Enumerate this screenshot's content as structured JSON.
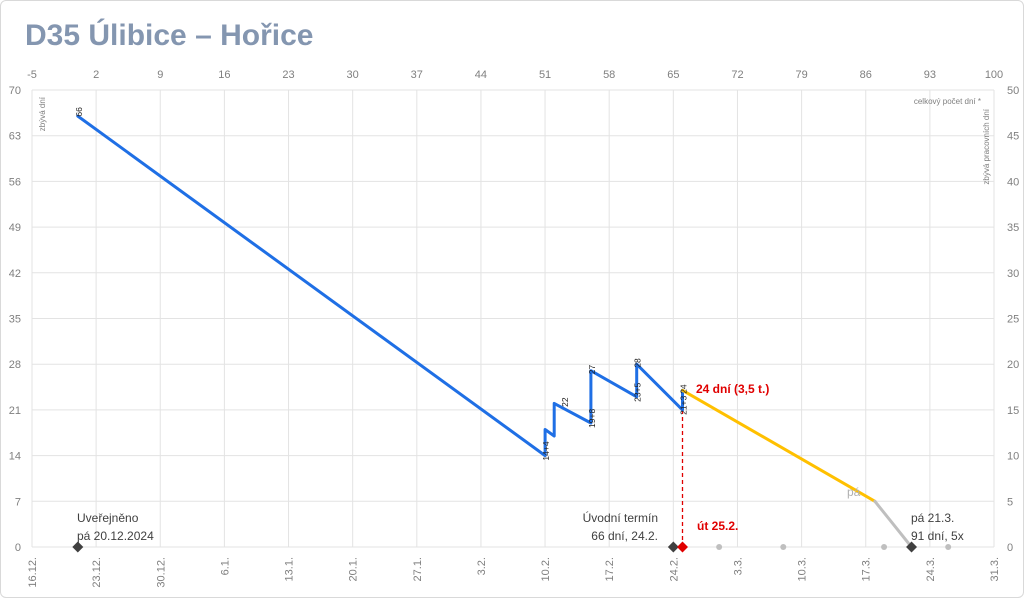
{
  "title": "D35 Úlibice – Hořice",
  "chart_data": {
    "type": "line",
    "title": "D35 Úlibice – Hořice",
    "x_top": {
      "min": -5,
      "max": 100,
      "ticks": [
        "-5",
        "2",
        "9",
        "16",
        "23",
        "30",
        "37",
        "44",
        "51",
        "58",
        "65",
        "72",
        "79",
        "86",
        "93",
        "100"
      ]
    },
    "x_bottom": {
      "ticks": [
        "16.12.",
        "23.12.",
        "30.12.",
        "6.1.",
        "13.1.",
        "20.1.",
        "27.1.",
        "3.2.",
        "10.2.",
        "17.2.",
        "24.2.",
        "3.3.",
        "10.3.",
        "17.3.",
        "24.3.",
        "31.3."
      ]
    },
    "y_left": {
      "min": 0,
      "max": 70,
      "label": "zbývá dní",
      "ticks": [
        "0",
        "7",
        "14",
        "21",
        "28",
        "35",
        "42",
        "49",
        "56",
        "63",
        "70"
      ]
    },
    "y_right": {
      "min": 0,
      "max": 50,
      "label": "zbývá pracovních dní",
      "label_top": "celkový počet dní *",
      "ticks": [
        "0",
        "5",
        "10",
        "15",
        "20",
        "25",
        "30",
        "35",
        "40",
        "45",
        "50"
      ]
    },
    "grid": true,
    "series": [
      {
        "color": "#1f6fe5",
        "points": [
          [
            0,
            66
          ],
          [
            51,
            14
          ],
          [
            51,
            18
          ],
          [
            52,
            17
          ],
          [
            52,
            22
          ],
          [
            56,
            19
          ],
          [
            56,
            27
          ],
          [
            61,
            23
          ],
          [
            61,
            28
          ],
          [
            66,
            21
          ],
          [
            66,
            24
          ]
        ]
      },
      {
        "color": "#ffc000",
        "points": [
          [
            66,
            24
          ],
          [
            87,
            7
          ]
        ]
      },
      {
        "color": "#bfbfbf",
        "points": [
          [
            87,
            7
          ],
          [
            91,
            0
          ]
        ]
      }
    ],
    "point_labels": [
      {
        "x": 0,
        "y": 66,
        "text": "66"
      },
      {
        "x": 51,
        "y": 14,
        "text": "14+4"
      },
      {
        "x": 52,
        "y": 22,
        "text": "22"
      },
      {
        "x": 56,
        "y": 19,
        "text": "19+8"
      },
      {
        "x": 56,
        "y": 27,
        "text": "27"
      },
      {
        "x": 61,
        "y": 23,
        "text": "23+5"
      },
      {
        "x": 61,
        "y": 28,
        "text": "28"
      },
      {
        "x": 66,
        "y": 21,
        "text": "21+3"
      },
      {
        "x": 66,
        "y": 24,
        "text": "24"
      }
    ],
    "markers": [
      {
        "x": 0,
        "y": 0,
        "color": "#404040",
        "shape": "diamond"
      },
      {
        "x": 65,
        "y": 0,
        "color": "#404040",
        "shape": "diamond"
      },
      {
        "x": 66,
        "y": 0,
        "color": "#e00000",
        "shape": "diamond"
      },
      {
        "x": 91,
        "y": 0,
        "color": "#404040",
        "shape": "diamond"
      },
      {
        "x": 70,
        "y": 0,
        "color": "#bfbfbf",
        "shape": "circle"
      },
      {
        "x": 77,
        "y": 0,
        "color": "#bfbfbf",
        "shape": "circle"
      },
      {
        "x": 88,
        "y": 0,
        "color": "#bfbfbf",
        "shape": "circle"
      },
      {
        "x": 95,
        "y": 0,
        "color": "#bfbfbf",
        "shape": "circle"
      }
    ],
    "reference_line": {
      "x": 66,
      "y_from": 0,
      "y_to": 21,
      "color": "#e00000",
      "style": "dashed"
    },
    "annotations": {
      "published_line1": "Uveřejněno",
      "published_line2": "pá 20.12.2024",
      "initial_line1": "Úvodní termín",
      "initial_line2": "66 dní, 24.2.",
      "current_date": "út 25.2.",
      "remaining": "24 dní (3,5 t.)",
      "friday": "pá",
      "end_line1": "pá 21.3.",
      "end_line2": "91 dní, 5x"
    }
  }
}
